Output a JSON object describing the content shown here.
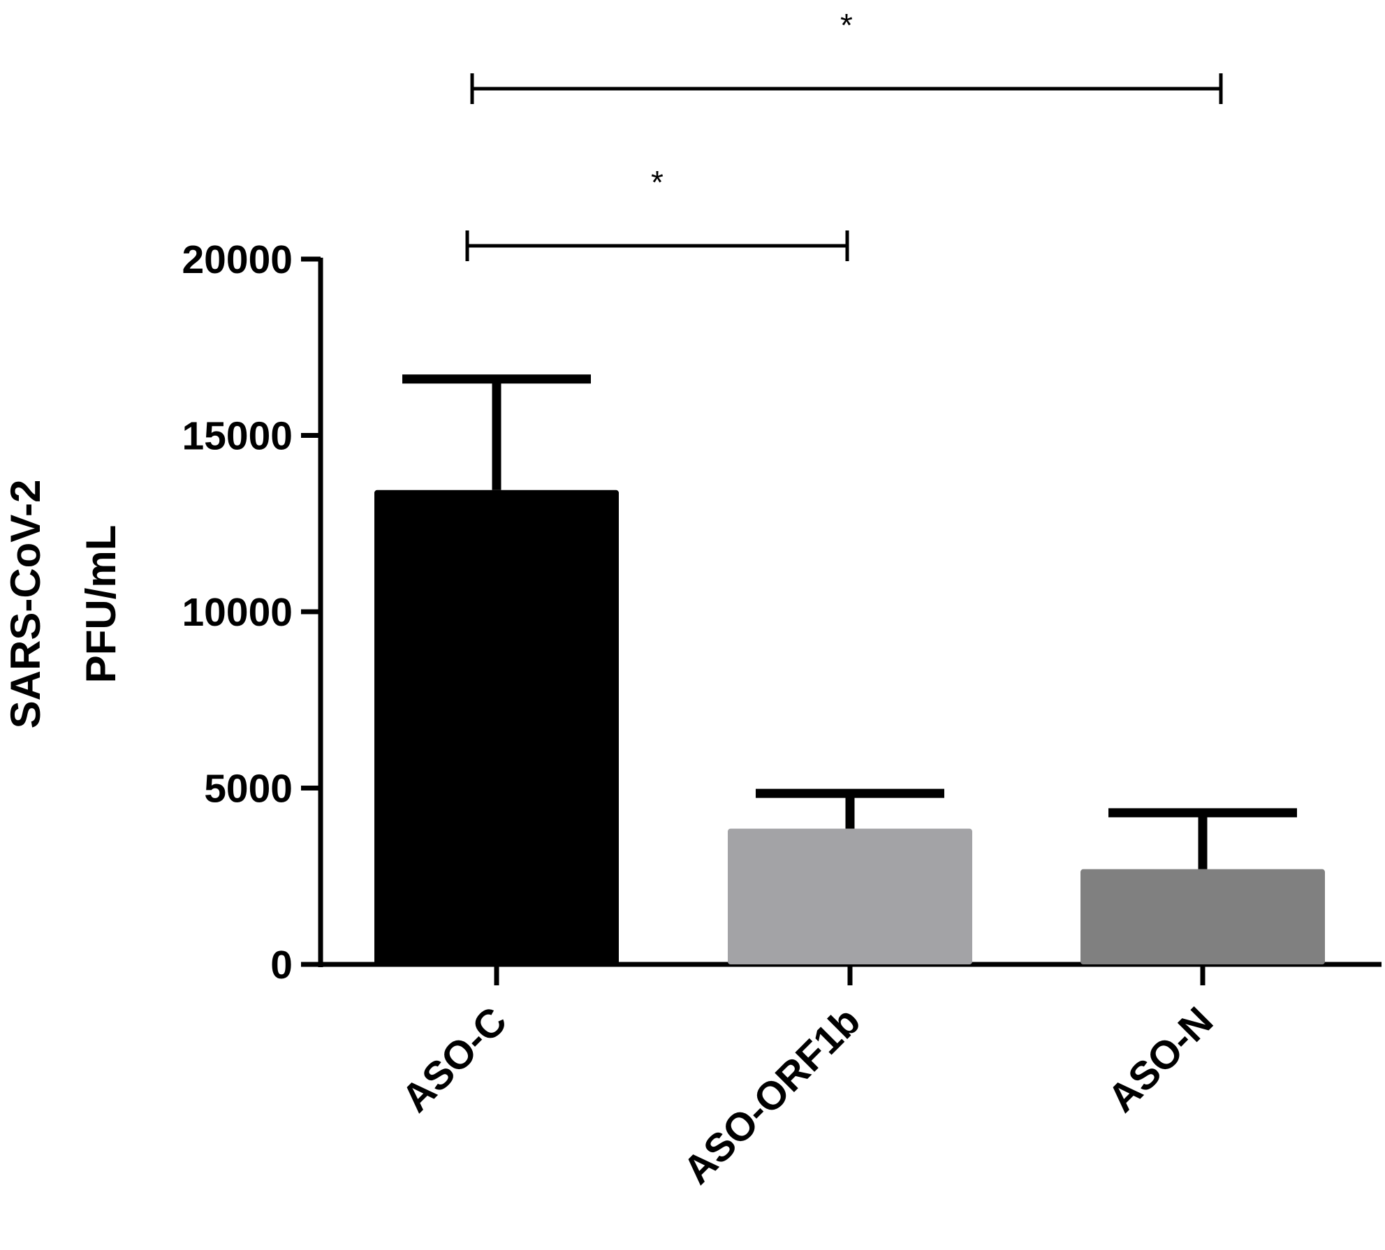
{
  "chart_data": {
    "type": "bar",
    "ylabel": [
      "SARS-CoV-2",
      "PFU/mL"
    ],
    "xlabel": "",
    "categories": [
      "ASO-C",
      "ASO-ORF1b",
      "ASO-N"
    ],
    "values": [
      13450,
      3850,
      2700
    ],
    "error_upper": [
      16600,
      4850,
      4300
    ],
    "colors": [
      "#000000",
      "#a3a3a6",
      "#808080"
    ],
    "ylim": [
      0,
      20000
    ],
    "yticks": [
      0,
      5000,
      10000,
      15000,
      20000
    ],
    "tick_labels": [
      "0",
      "5000",
      "10000",
      "15000",
      "20000"
    ],
    "grid": false,
    "significance": [
      {
        "from": 0,
        "to": 2,
        "label": "*"
      },
      {
        "from": 0,
        "to": 1,
        "label": "*"
      }
    ]
  }
}
